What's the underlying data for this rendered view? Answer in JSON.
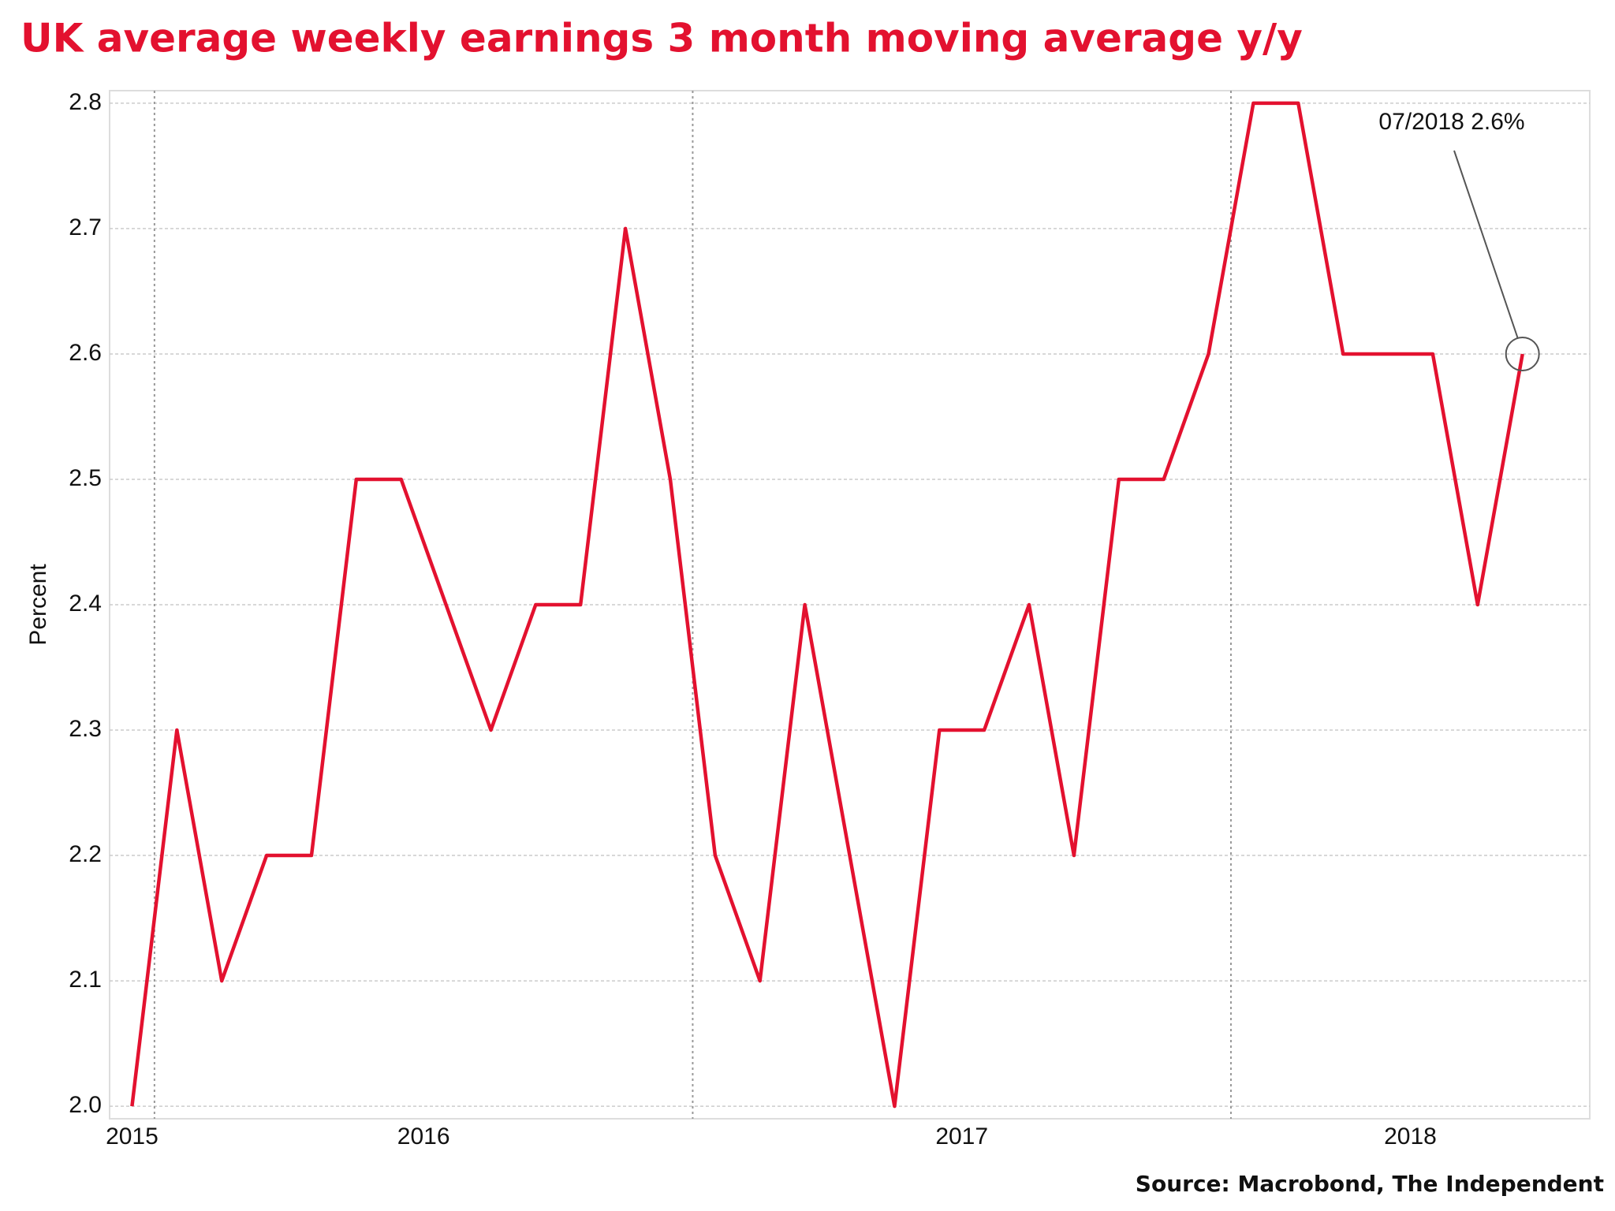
{
  "chart_data": {
    "type": "line",
    "title": "UK average weekly earnings 3 month moving average y/y",
    "y_label": "Percent",
    "source": "Source: Macrobond, The Independent",
    "annotation": "07/2018 2.6%",
    "x": [
      "12/2015",
      "01/2016",
      "02/2016",
      "03/2016",
      "04/2016",
      "05/2016",
      "06/2016",
      "07/2016",
      "08/2016",
      "09/2016",
      "10/2016",
      "11/2016",
      "12/2016",
      "01/2017",
      "02/2017",
      "03/2017",
      "04/2017",
      "05/2017",
      "06/2017",
      "07/2017",
      "08/2017",
      "09/2017",
      "10/2017",
      "11/2017",
      "12/2017",
      "01/2018",
      "02/2018",
      "03/2018",
      "04/2018",
      "05/2018",
      "06/2018",
      "07/2018"
    ],
    "series": [
      {
        "name": "UK average weekly earnings",
        "color": "#e3112f",
        "values": [
          2.0,
          2.3,
          2.1,
          2.2,
          2.2,
          2.5,
          2.5,
          2.4,
          2.3,
          2.4,
          2.4,
          2.7,
          2.5,
          2.2,
          2.1,
          2.4,
          2.2,
          2.0,
          2.3,
          2.3,
          2.4,
          2.2,
          2.5,
          2.5,
          2.6,
          2.8,
          2.8,
          2.6,
          2.6,
          2.6,
          2.4,
          2.6
        ]
      }
    ],
    "xticks": [
      "2015",
      "2016",
      "2017",
      "2018"
    ],
    "ylim": [
      1.99,
      2.81
    ],
    "yticks": [
      {
        "value": 2,
        "label": "2.0"
      },
      2.1,
      2.2,
      2.3,
      2.4,
      2.5,
      2.6,
      2.7,
      2.8
    ],
    "grid": true
  }
}
